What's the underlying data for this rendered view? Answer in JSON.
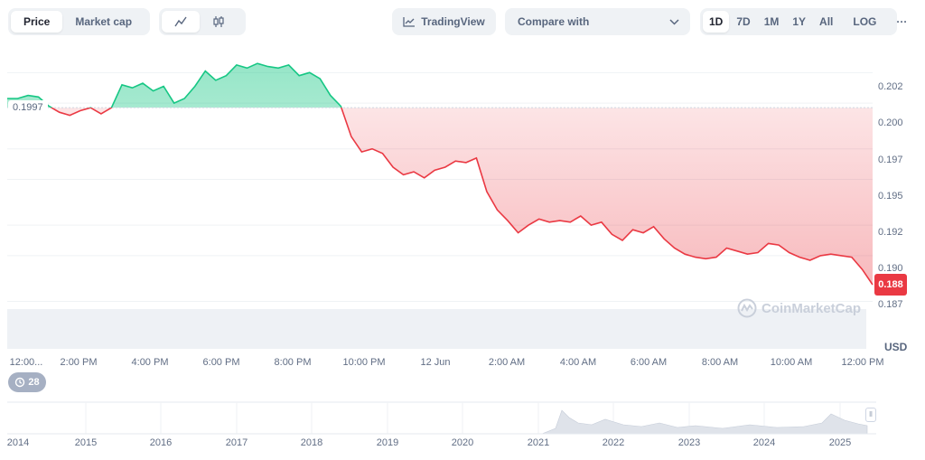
{
  "toolbar": {
    "type_tabs": [
      "Price",
      "Market cap"
    ],
    "active_type": "Price",
    "tradingview_label": "TradingView",
    "compare_label": "Compare with",
    "ranges": [
      "1D",
      "7D",
      "1M",
      "1Y",
      "All"
    ],
    "active_range": "1D",
    "log_label": "LOG",
    "more_label": "···"
  },
  "chart": {
    "start_value_label": "0.1997",
    "current_price_label": "0.188",
    "currency": "USD",
    "watermark": "CoinMarketCap",
    "events_count": "28",
    "y_ticks": [
      "0.202",
      "0.200",
      "0.197",
      "0.195",
      "0.192",
      "0.190",
      "0.187"
    ],
    "x_ticks": [
      "12:00...",
      "2:00 PM",
      "4:00 PM",
      "6:00 PM",
      "8:00 PM",
      "10:00 PM",
      "12 Jun",
      "2:00 AM",
      "4:00 AM",
      "6:00 AM",
      "8:00 AM",
      "10:00 AM",
      "12:00 PM"
    ],
    "navigator_years": [
      "2014",
      "2015",
      "2016",
      "2017",
      "2018",
      "2019",
      "2020",
      "2021",
      "2022",
      "2023",
      "2024",
      "2025"
    ],
    "colors": {
      "up": "#16c784",
      "down": "#ea3943",
      "baseline": "#cfd6e4"
    }
  },
  "chart_data": {
    "type": "area",
    "baseline": 0.1997,
    "ylim": [
      0.1865,
      0.2035
    ],
    "y_ticks": [
      0.202,
      0.2,
      0.197,
      0.195,
      0.192,
      0.19,
      0.187
    ],
    "x_unit": "hours since first visible tick (12:00 PM, 11 Jun)",
    "x_range": [
      0,
      24.2
    ],
    "y": [
      0.2003,
      0.2003,
      0.2005,
      0.2004,
      0.1998,
      0.1994,
      0.1992,
      0.1995,
      0.1997,
      0.1993,
      0.1997,
      0.2012,
      0.201,
      0.2013,
      0.2008,
      0.2011,
      0.2,
      0.2003,
      0.2011,
      0.2021,
      0.2015,
      0.2018,
      0.2025,
      0.2023,
      0.2026,
      0.2024,
      0.2023,
      0.2025,
      0.2018,
      0.202,
      0.2016,
      0.2005,
      0.1998,
      0.1978,
      0.1968,
      0.197,
      0.1967,
      0.1958,
      0.1953,
      0.1955,
      0.1951,
      0.1956,
      0.1958,
      0.1962,
      0.1961,
      0.1964,
      0.1942,
      0.193,
      0.1923,
      0.1915,
      0.192,
      0.1924,
      0.1922,
      0.1923,
      0.1922,
      0.1926,
      0.192,
      0.1922,
      0.1914,
      0.191,
      0.1917,
      0.1915,
      0.1919,
      0.1911,
      0.1905,
      0.1901,
      0.1899,
      0.1898,
      0.1899,
      0.1905,
      0.1903,
      0.1901,
      0.1902,
      0.1908,
      0.1907,
      0.1902,
      0.1899,
      0.1897,
      0.19,
      0.1901,
      0.19,
      0.1899,
      0.1891,
      0.1881
    ]
  }
}
